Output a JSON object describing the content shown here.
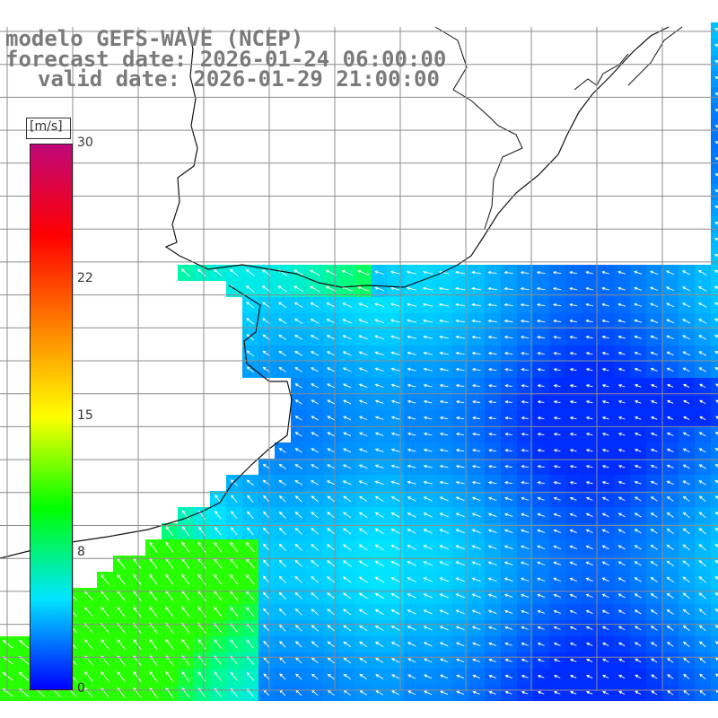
{
  "title": {
    "line1": "modelo GEFS-WAVE (NCEP)",
    "line2": "forecast date: 2026-01-24 06:00:00",
    "line3": "valid date: 2026-01-29 21:00:00"
  },
  "colorbar": {
    "unit": "[m/s]",
    "ticks": [
      "30",
      "22",
      "15",
      "8",
      "0"
    ],
    "tick_values": [
      30,
      22,
      15,
      8,
      0
    ],
    "range": [
      0,
      30
    ],
    "colors": [
      "#0000ff",
      "#00e5ff",
      "#00ff00",
      "#ffff00",
      "#ff8000",
      "#ff0000",
      "#c0087a"
    ]
  },
  "colors": {
    "land": "#ffffff",
    "coast": "#111111",
    "grid": "#8c8c8c",
    "arrow": "#ffffff"
  }
}
